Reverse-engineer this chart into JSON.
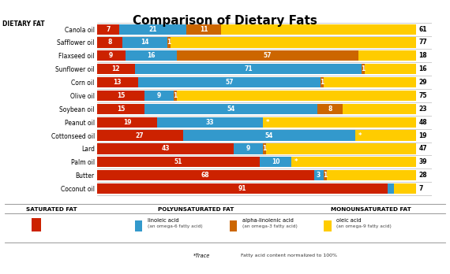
{
  "title": "Comparison of Dietary Fats",
  "ylabel_label": "DIETARY FAT",
  "oils": [
    "Canola oil",
    "Safflower oil",
    "Flaxseed oil",
    "Sunflower oil",
    "Corn oil",
    "Olive oil",
    "Soybean oil",
    "Peanut oil",
    "Cottonseed oil",
    "Lard",
    "Palm oil",
    "Butter",
    "Coconut oil"
  ],
  "saturated": [
    7,
    8,
    9,
    12,
    13,
    15,
    15,
    19,
    27,
    43,
    51,
    68,
    91
  ],
  "linoleic": [
    21,
    14,
    16,
    71,
    57,
    9,
    54,
    33,
    54,
    9,
    10,
    3,
    2
  ],
  "alphalinolenic": [
    11,
    1,
    57,
    1,
    1,
    1,
    8,
    0,
    0,
    1,
    0,
    1,
    0
  ],
  "oleic": [
    61,
    77,
    18,
    16,
    29,
    75,
    23,
    48,
    19,
    47,
    39,
    28,
    7
  ],
  "aln_trace": [
    false,
    false,
    false,
    false,
    false,
    false,
    false,
    true,
    true,
    false,
    true,
    false,
    false
  ],
  "sat_color": "#cc2200",
  "lin_color": "#3399cc",
  "aln_color": "#cc6600",
  "ole_color": "#ffcc00",
  "bar_height": 0.78,
  "xlim": 105,
  "legend_sat_label": "SATURATED FAT",
  "legend_poly_label": "POLYUNSATURATED FAT",
  "legend_mono_label": "MONOUNSATURATED FAT"
}
